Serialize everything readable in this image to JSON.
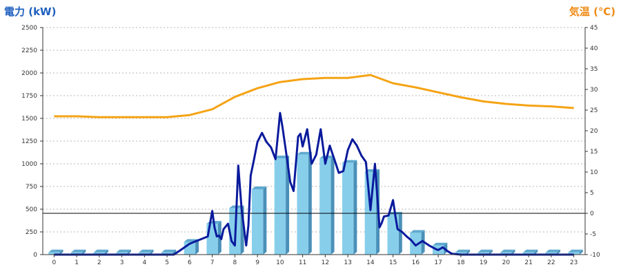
{
  "chart_data": {
    "type": "bar",
    "ylabel": "電力 (kW)",
    "y2label": "気温 (℃)",
    "ylim": [
      0,
      2500
    ],
    "y2lim": [
      -10,
      45
    ],
    "yticks": [
      "0",
      "250",
      "500",
      "750",
      "1000",
      "1250",
      "1500",
      "1750",
      "2000",
      "2250",
      "2500"
    ],
    "y2ticks": [
      "-10",
      "-5",
      "0",
      "5",
      "10",
      "15",
      "20",
      "25",
      "30",
      "35",
      "40",
      "45"
    ],
    "categories": [
      "0",
      "1",
      "2",
      "3",
      "4",
      "5",
      "6",
      "7",
      "8",
      "9",
      "10",
      "11",
      "12",
      "13",
      "14",
      "15",
      "16",
      "17",
      "18",
      "19",
      "20",
      "21",
      "22",
      "23"
    ],
    "grid": true,
    "colors": {
      "bars": "#87ceeb",
      "bar_side": "#4a90b8",
      "power_line": "#0a1a9c",
      "temp_line": "#f5a314",
      "left_axis": "#1e5fbf",
      "right_axis": "#f08a14"
    },
    "series": [
      {
        "values": [
          25,
          25,
          25,
          25,
          25,
          25,
          140,
          340,
          510,
          720,
          1060,
          1100,
          1060,
          1010,
          910,
          440,
          240,
          100,
          25,
          25,
          25,
          25,
          25,
          25
        ]
      },
      {
        "x": [
          0,
          0.5,
          1,
          1.5,
          2,
          2.5,
          3,
          3.5,
          4,
          4.5,
          5,
          5.3,
          5.6,
          6,
          6.2,
          6.5,
          6.8,
          7,
          7.1,
          7.2,
          7.3,
          7.4,
          7.5,
          7.7,
          7.85,
          8,
          8.15,
          8.3,
          8.4,
          8.5,
          8.6,
          8.7,
          8.85,
          9,
          9.2,
          9.4,
          9.6,
          9.8,
          10,
          10.1,
          10.3,
          10.45,
          10.6,
          10.7,
          10.8,
          10.9,
          11,
          11.2,
          11.4,
          11.6,
          11.8,
          11.9,
          12,
          12.2,
          12.4,
          12.6,
          12.8,
          13,
          13.2,
          13.4,
          13.6,
          13.8,
          14,
          14.2,
          14.4,
          14.5,
          14.6,
          14.8,
          15,
          15.1,
          15.2,
          15.4,
          15.6,
          15.8,
          16,
          16.3,
          16.6,
          16.9,
          17,
          17.2,
          17.4,
          17.6,
          18,
          19,
          20,
          21,
          22,
          23
        ],
        "values": [
          0,
          0,
          0,
          0,
          0,
          0,
          0,
          0,
          0,
          0,
          0,
          0,
          50,
          120,
          140,
          170,
          200,
          480,
          300,
          200,
          210,
          170,
          280,
          340,
          150,
          100,
          980,
          500,
          300,
          100,
          320,
          870,
          1050,
          1240,
          1340,
          1240,
          1180,
          1050,
          1560,
          1420,
          1070,
          800,
          700,
          1000,
          1300,
          1330,
          1190,
          1380,
          1000,
          1100,
          1380,
          1190,
          1000,
          1200,
          1050,
          900,
          920,
          1150,
          1270,
          1200,
          1090,
          1020,
          490,
          1000,
          300,
          350,
          420,
          430,
          600,
          430,
          280,
          250,
          200,
          160,
          100,
          150,
          100,
          60,
          50,
          80,
          40,
          10,
          0,
          0,
          0,
          0,
          0,
          0
        ]
      },
      {
        "x": [
          0,
          1,
          2,
          3,
          4,
          5,
          6,
          7,
          8,
          9,
          10,
          11,
          12,
          13,
          14,
          15,
          16,
          17,
          18,
          19,
          20,
          21,
          22,
          23
        ],
        "values": [
          23.5,
          23.5,
          23.3,
          23.3,
          23.3,
          23.3,
          23.8,
          25.2,
          28.2,
          30.3,
          31.8,
          32.5,
          32.8,
          32.8,
          33.5,
          31.5,
          30.5,
          29.3,
          28.1,
          27.1,
          26.5,
          26.1,
          25.9,
          25.5
        ]
      }
    ],
    "annotation": "horizontal line at 0 ℃"
  }
}
